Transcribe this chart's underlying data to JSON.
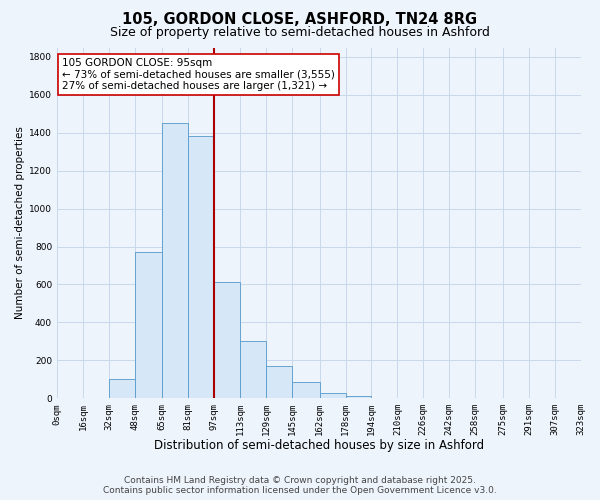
{
  "title": "105, GORDON CLOSE, ASHFORD, TN24 8RG",
  "subtitle": "Size of property relative to semi-detached houses in Ashford",
  "xlabel": "Distribution of semi-detached houses by size in Ashford",
  "ylabel": "Number of semi-detached properties",
  "bin_edges": [
    0,
    16,
    32,
    48,
    65,
    81,
    97,
    113,
    129,
    145,
    162,
    178,
    194,
    210,
    226,
    242,
    258,
    275,
    291,
    307,
    323
  ],
  "bin_counts": [
    0,
    0,
    100,
    770,
    1450,
    1385,
    615,
    300,
    170,
    85,
    25,
    10,
    0,
    0,
    0,
    0,
    0,
    0,
    0,
    0
  ],
  "bar_facecolor": "#d6e8f7",
  "bar_edgecolor": "#5599cc",
  "vline_x": 97,
  "vline_color": "#aa0000",
  "annotation_line1": "105 GORDON CLOSE: 95sqm",
  "annotation_line2": "← 73% of semi-detached houses are smaller (3,555)",
  "annotation_line3": "27% of semi-detached houses are larger (1,321) →",
  "annotation_box_edgecolor": "#cc0000",
  "annotation_box_facecolor": "#ffffff",
  "grid_color": "#c8d8ea",
  "bg_color": "#eef4fc",
  "ylim": [
    0,
    1850
  ],
  "yticks": [
    0,
    200,
    400,
    600,
    800,
    1000,
    1200,
    1400,
    1600,
    1800
  ],
  "tick_labels": [
    "0sqm",
    "16sqm",
    "32sqm",
    "48sqm",
    "65sqm",
    "81sqm",
    "97sqm",
    "113sqm",
    "129sqm",
    "145sqm",
    "162sqm",
    "178sqm",
    "194sqm",
    "210sqm",
    "226sqm",
    "242sqm",
    "258sqm",
    "275sqm",
    "291sqm",
    "307sqm",
    "323sqm"
  ],
  "footer_line1": "Contains HM Land Registry data © Crown copyright and database right 2025.",
  "footer_line2": "Contains public sector information licensed under the Open Government Licence v3.0.",
  "title_fontsize": 10.5,
  "subtitle_fontsize": 9,
  "xlabel_fontsize": 8.5,
  "ylabel_fontsize": 7.5,
  "tick_fontsize": 6.5,
  "annot_fontsize": 7.5,
  "footer_fontsize": 6.5
}
